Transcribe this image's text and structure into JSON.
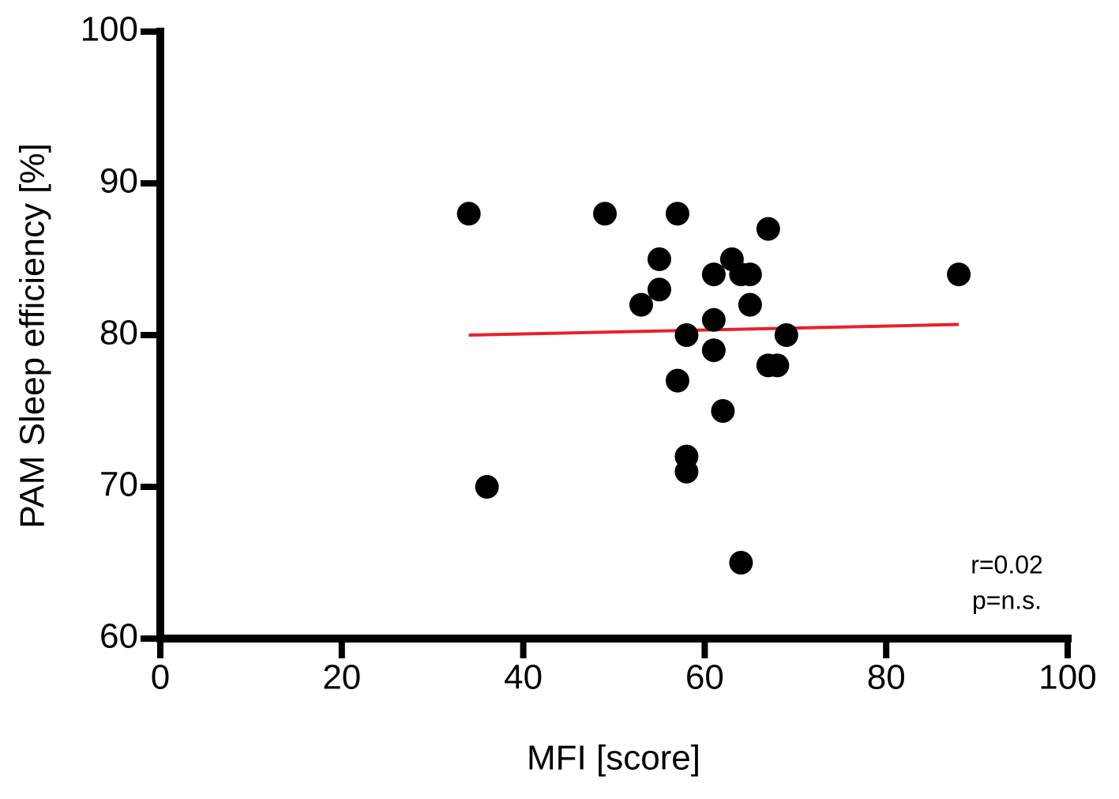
{
  "chart_data": {
    "type": "scatter",
    "x_label": "MFI [score]",
    "y_label": "PAM Sleep efficiency [%]",
    "x": [
      34,
      36,
      49,
      57,
      67,
      55,
      63,
      55,
      61,
      64,
      65,
      53,
      65,
      61,
      58,
      69,
      61,
      67,
      68,
      57,
      62,
      58,
      58,
      64,
      88
    ],
    "series": [
      {
        "color": "#000000",
        "values": [
          88,
          70,
          88,
          88,
          87,
          85,
          85,
          83,
          84,
          84,
          84,
          82,
          82,
          81,
          80,
          80,
          79,
          78,
          78,
          77,
          75,
          72,
          71,
          65,
          84
        ]
      }
    ],
    "fit_line": {
      "x": [
        34,
        88
      ],
      "y": [
        80,
        80.7
      ],
      "color": "#e8202a"
    },
    "annotations": [
      "r=0.02",
      "p=n.s."
    ],
    "xlim": [
      0,
      100
    ],
    "xticks": [
      0,
      20,
      40,
      60,
      80,
      100
    ],
    "ylim": [
      60,
      100
    ],
    "yticks": [
      60,
      70,
      80,
      90,
      100
    ],
    "grid": false
  }
}
